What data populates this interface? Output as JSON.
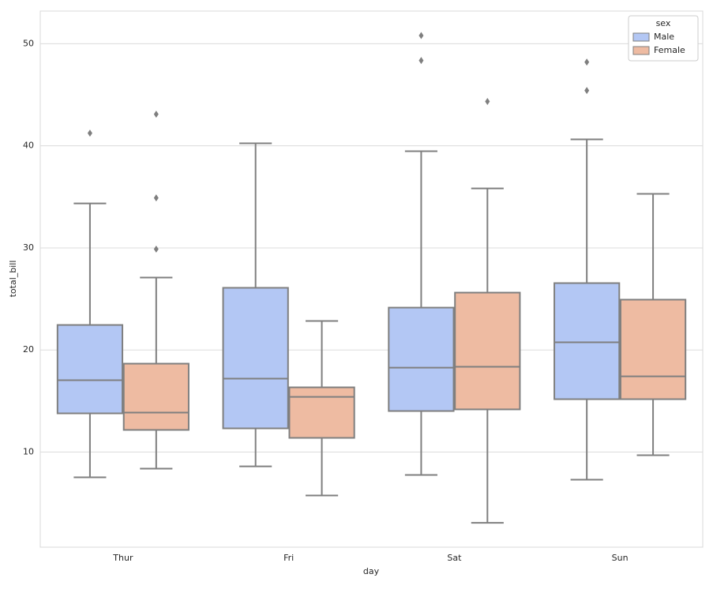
{
  "chart_data": {
    "type": "box",
    "x_label": "day",
    "y_label": "total_bill",
    "categories": [
      "Thur",
      "Fri",
      "Sat",
      "Sun"
    ],
    "legend_title": "sex",
    "legend_position": "upper right",
    "grid": true,
    "line_color": "#7f7f7f",
    "ylim": [
      0.68,
      53.2
    ],
    "yticks": [
      10,
      20,
      30,
      40,
      50
    ],
    "series": [
      {
        "name": "Male",
        "color": "#b3c7f4",
        "whislo": [
          7.53,
          8.6,
          7.76,
          7.29
        ],
        "q1": [
          13.79,
          12.32,
          14.02,
          15.18
        ],
        "med": [
          17.04,
          17.19,
          18.27,
          20.75
        ],
        "q3": [
          22.45,
          26.09,
          24.15,
          26.55
        ],
        "whishi": [
          34.36,
          40.24,
          39.47,
          40.63
        ],
        "outliers": [
          [
            41.24
          ],
          [],
          [
            48.36,
            50.8
          ],
          [
            45.42,
            48.2
          ]
        ]
      },
      {
        "name": "Female",
        "color": "#eebba2",
        "whislo": [
          8.38,
          5.75,
          3.07,
          9.69
        ],
        "q1": [
          12.17,
          11.39,
          14.18,
          15.18
        ],
        "med": [
          13.87,
          15.41,
          18.35,
          17.42
        ],
        "q3": [
          18.66,
          16.34,
          25.62,
          24.93
        ],
        "whishi": [
          27.09,
          22.84,
          35.83,
          35.29
        ],
        "outliers": [
          [
            29.88,
            34.9,
            43.1
          ],
          [],
          [
            44.34
          ],
          []
        ]
      }
    ]
  }
}
